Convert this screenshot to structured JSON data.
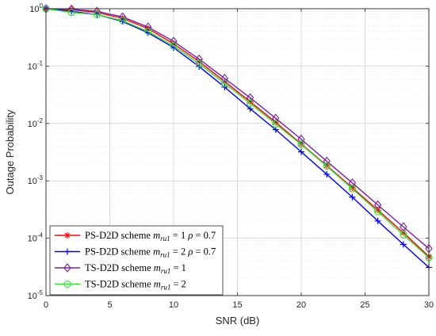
{
  "chart_data": {
    "type": "line",
    "xlabel": "SNR (dB)",
    "ylabel": "Outage Probability",
    "xlim": [
      0,
      30
    ],
    "ylim": [
      1e-05,
      1
    ],
    "yscale": "log",
    "grid": true,
    "legend_position": "bottom-left",
    "x_ticks": [
      0,
      5,
      10,
      15,
      20,
      25,
      30
    ],
    "x_tick_labels": [
      "0",
      "5",
      "10",
      "15",
      "20",
      "25",
      "30"
    ],
    "y_ticks": [
      1,
      0.1,
      0.01,
      0.001,
      0.0001,
      1e-05
    ],
    "y_tick_labels": [
      {
        "base": "10",
        "exp": "0"
      },
      {
        "base": "10",
        "exp": "-1"
      },
      {
        "base": "10",
        "exp": "-2"
      },
      {
        "base": "10",
        "exp": "-3"
      },
      {
        "base": "10",
        "exp": "-4"
      },
      {
        "base": "10",
        "exp": "-5"
      }
    ],
    "x": [
      0,
      2,
      4,
      6,
      8,
      10,
      12,
      14,
      16,
      18,
      20,
      22,
      24,
      26,
      28,
      30
    ],
    "series": [
      {
        "legend": {
          "pre": "PS-D2D scheme ",
          "var": "m",
          "sub": "ru1",
          "post": " = 1 ",
          "rho": "ρ",
          "rho_post": " = 0.7"
        },
        "color": "#ff0000",
        "marker": "asterisk",
        "values": [
          1,
          0.96,
          0.86,
          0.68,
          0.45,
          0.245,
          0.12,
          0.054,
          0.024,
          0.0105,
          0.0044,
          0.00185,
          0.00076,
          0.00031,
          0.000125,
          4.8e-05
        ]
      },
      {
        "legend": {
          "pre": "PS-D2D scheme ",
          "var": "m",
          "sub": "ru1",
          "post": " = 2 ",
          "rho": "ρ",
          "rho_post": " = 0.7"
        },
        "color": "#0000ff",
        "marker": "plus",
        "values": [
          1,
          0.9,
          0.79,
          0.6,
          0.38,
          0.21,
          0.098,
          0.043,
          0.018,
          0.0078,
          0.0032,
          0.0013,
          0.00052,
          0.0002,
          7.8e-05,
          3.1e-05
        ]
      },
      {
        "legend": {
          "pre": "TS-D2D scheme ",
          "var": "m",
          "sub": "ru1",
          "post": " = 1",
          "rho": "",
          "rho_post": ""
        },
        "color": "#7b1fa2",
        "marker": "diamond",
        "values": [
          1,
          0.98,
          0.9,
          0.72,
          0.48,
          0.27,
          0.132,
          0.061,
          0.028,
          0.0123,
          0.0053,
          0.0022,
          0.00092,
          0.00038,
          0.000158,
          6.6e-05
        ]
      },
      {
        "legend": {
          "pre": "TS-D2D scheme ",
          "var": "m",
          "sub": "ru1",
          "post": " = 2",
          "rho": "",
          "rho_post": ""
        },
        "color": "#33dd33",
        "marker": "circle",
        "values": [
          1,
          0.86,
          0.79,
          0.62,
          0.4,
          0.225,
          0.11,
          0.05,
          0.0225,
          0.0098,
          0.0043,
          0.0018,
          0.00073,
          0.00029,
          0.000115,
          4.6e-05
        ]
      }
    ]
  }
}
